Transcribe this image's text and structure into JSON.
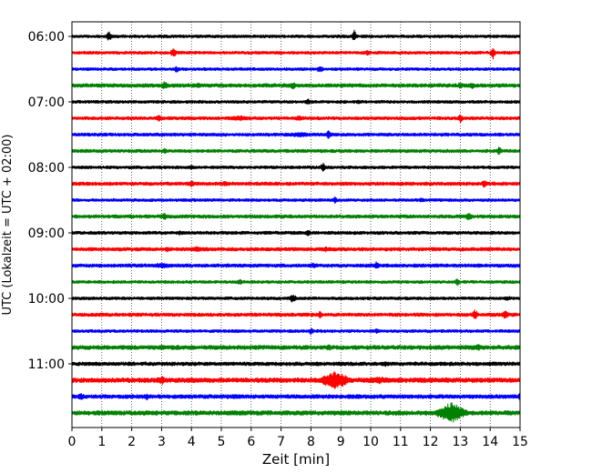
{
  "chart_data": {
    "type": "line",
    "subtype": "helicorder",
    "xlabel": "Zeit  [min]",
    "ylabel": "UTC (Lokalzeit = UTC + 02:00)",
    "xlim": [
      0,
      15
    ],
    "x_ticks": [
      "0",
      "1",
      "2",
      "3",
      "4",
      "5",
      "6",
      "7",
      "8",
      "9",
      "10",
      "11",
      "12",
      "13",
      "14",
      "15"
    ],
    "y_tick_labels": [
      "06:00",
      "07:00",
      "08:00",
      "09:00",
      "10:00",
      "11:00"
    ],
    "trace_minutes_per_line": 15,
    "grid": "vertical-dotted",
    "color_cycle": [
      "#000000",
      "#ff0000",
      "#0000ff",
      "#008000"
    ],
    "traces": [
      {
        "time": "06:00",
        "color": "#000000",
        "base_amp": 1.2,
        "events": [
          {
            "t": 1.25,
            "amp": 6,
            "dur": 0.15
          },
          {
            "t": 9.45,
            "amp": 7,
            "dur": 0.12
          }
        ]
      },
      {
        "time": "06:15",
        "color": "#ff0000",
        "base_amp": 1.2,
        "events": [
          {
            "t": 3.4,
            "amp": 6,
            "dur": 0.15
          },
          {
            "t": 14.1,
            "amp": 7,
            "dur": 0.12
          },
          {
            "t": 9.9,
            "amp": 3,
            "dur": 0.2
          }
        ]
      },
      {
        "time": "06:30",
        "color": "#0000ff",
        "base_amp": 1.2,
        "events": [
          {
            "t": 3.5,
            "amp": 4,
            "dur": 0.15
          },
          {
            "t": 8.3,
            "amp": 5,
            "dur": 0.15
          }
        ]
      },
      {
        "time": "06:45",
        "color": "#008000",
        "base_amp": 1.5,
        "events": [
          {
            "t": 3.1,
            "amp": 5,
            "dur": 0.2
          },
          {
            "t": 4.2,
            "amp": 3,
            "dur": 0.3
          },
          {
            "t": 7.4,
            "amp": 4,
            "dur": 0.2
          },
          {
            "t": 13.0,
            "amp": 4,
            "dur": 0.15
          },
          {
            "t": 13.4,
            "amp": 4,
            "dur": 0.15
          }
        ]
      },
      {
        "time": "07:00",
        "color": "#000000",
        "base_amp": 1.2,
        "events": [
          {
            "t": 7.9,
            "amp": 4,
            "dur": 0.15
          },
          {
            "t": 9.6,
            "amp": 3,
            "dur": 0.15
          }
        ]
      },
      {
        "time": "07:15",
        "color": "#ff0000",
        "base_amp": 1.3,
        "events": [
          {
            "t": 2.9,
            "amp": 4,
            "dur": 0.2
          },
          {
            "t": 5.6,
            "amp": 3,
            "dur": 0.8
          },
          {
            "t": 7.6,
            "amp": 3,
            "dur": 0.3
          },
          {
            "t": 13.0,
            "amp": 5,
            "dur": 0.15
          }
        ]
      },
      {
        "time": "07:30",
        "color": "#0000ff",
        "base_amp": 1.3,
        "events": [
          {
            "t": 7.6,
            "amp": 3,
            "dur": 0.8
          },
          {
            "t": 8.6,
            "amp": 6,
            "dur": 0.15
          }
        ]
      },
      {
        "time": "07:45",
        "color": "#008000",
        "base_amp": 1.3,
        "events": [
          {
            "t": 3.1,
            "amp": 4,
            "dur": 0.15
          },
          {
            "t": 14.3,
            "amp": 5,
            "dur": 0.15
          }
        ]
      },
      {
        "time": "08:00",
        "color": "#000000",
        "base_amp": 1.2,
        "events": [
          {
            "t": 8.4,
            "amp": 6,
            "dur": 0.12
          },
          {
            "t": 4.0,
            "amp": 2.5,
            "dur": 0.3
          }
        ]
      },
      {
        "time": "08:15",
        "color": "#ff0000",
        "base_amp": 1.4,
        "events": [
          {
            "t": 4.0,
            "amp": 4,
            "dur": 0.2
          },
          {
            "t": 5.1,
            "amp": 3,
            "dur": 0.3
          },
          {
            "t": 13.8,
            "amp": 5,
            "dur": 0.15
          }
        ]
      },
      {
        "time": "08:30",
        "color": "#0000ff",
        "base_amp": 1.2,
        "events": [
          {
            "t": 8.8,
            "amp": 4,
            "dur": 0.15
          },
          {
            "t": 11.7,
            "amp": 3,
            "dur": 0.15
          }
        ]
      },
      {
        "time": "08:45",
        "color": "#008000",
        "base_amp": 1.4,
        "events": [
          {
            "t": 3.1,
            "amp": 4,
            "dur": 0.2
          },
          {
            "t": 13.3,
            "amp": 5,
            "dur": 0.2
          }
        ]
      },
      {
        "time": "09:00",
        "color": "#000000",
        "base_amp": 1.3,
        "events": [
          {
            "t": 3.6,
            "amp": 3,
            "dur": 0.15
          },
          {
            "t": 7.9,
            "amp": 4,
            "dur": 0.15
          }
        ]
      },
      {
        "time": "09:15",
        "color": "#ff0000",
        "base_amp": 1.4,
        "events": [
          {
            "t": 3.2,
            "amp": 3,
            "dur": 0.2
          },
          {
            "t": 4.2,
            "amp": 3,
            "dur": 0.6
          },
          {
            "t": 8.5,
            "amp": 3,
            "dur": 0.2
          }
        ]
      },
      {
        "time": "09:30",
        "color": "#0000ff",
        "base_amp": 1.4,
        "events": [
          {
            "t": 3.0,
            "amp": 3,
            "dur": 0.6
          },
          {
            "t": 8.1,
            "amp": 3,
            "dur": 0.4
          },
          {
            "t": 10.2,
            "amp": 5,
            "dur": 0.15
          }
        ]
      },
      {
        "time": "09:45",
        "color": "#008000",
        "base_amp": 1.2,
        "events": [
          {
            "t": 5.6,
            "amp": 3,
            "dur": 0.3
          },
          {
            "t": 12.9,
            "amp": 4,
            "dur": 0.15
          }
        ]
      },
      {
        "time": "10:00",
        "color": "#000000",
        "base_amp": 1.2,
        "events": [
          {
            "t": 7.4,
            "amp": 5,
            "dur": 0.2
          },
          {
            "t": 14.6,
            "amp": 3,
            "dur": 0.2
          }
        ]
      },
      {
        "time": "10:15",
        "color": "#ff0000",
        "base_amp": 1.4,
        "events": [
          {
            "t": 8.3,
            "amp": 4,
            "dur": 0.15
          },
          {
            "t": 13.5,
            "amp": 6,
            "dur": 0.15
          },
          {
            "t": 14.5,
            "amp": 5,
            "dur": 0.2
          }
        ]
      },
      {
        "time": "10:30",
        "color": "#0000ff",
        "base_amp": 1.2,
        "events": [
          {
            "t": 8.0,
            "amp": 4,
            "dur": 0.15
          },
          {
            "t": 10.2,
            "amp": 3,
            "dur": 0.15
          }
        ]
      },
      {
        "time": "10:45",
        "color": "#008000",
        "base_amp": 1.7,
        "events": [
          {
            "t": 3.0,
            "amp": 3,
            "dur": 0.2
          },
          {
            "t": 8.6,
            "amp": 4,
            "dur": 0.2
          },
          {
            "t": 12.3,
            "amp": 3,
            "dur": 0.3
          },
          {
            "t": 13.6,
            "amp": 4,
            "dur": 0.2
          }
        ]
      },
      {
        "time": "11:00",
        "color": "#000000",
        "base_amp": 1.5,
        "events": [
          {
            "t": 10.5,
            "amp": 3,
            "dur": 0.3
          },
          {
            "t": 14.0,
            "amp": 3,
            "dur": 0.3
          }
        ]
      },
      {
        "time": "11:15",
        "color": "#ff0000",
        "base_amp": 1.9,
        "events": [
          {
            "t": 3.0,
            "amp": 5,
            "dur": 0.3
          },
          {
            "t": 8.8,
            "amp": 11,
            "dur": 0.7
          },
          {
            "t": 10.3,
            "amp": 4,
            "dur": 1.0
          },
          {
            "t": 12.0,
            "amp": 3,
            "dur": 0.3
          }
        ]
      },
      {
        "time": "11:30",
        "color": "#0000ff",
        "base_amp": 1.6,
        "events": [
          {
            "t": 0.3,
            "amp": 4,
            "dur": 0.2
          },
          {
            "t": 2.5,
            "amp": 4,
            "dur": 0.15
          },
          {
            "t": 5.5,
            "amp": 3,
            "dur": 0.5
          },
          {
            "t": 9.6,
            "amp": 3,
            "dur": 0.3
          },
          {
            "t": 15.0,
            "amp": 6,
            "dur": 0.1
          }
        ]
      },
      {
        "time": "11:45",
        "color": "#008000",
        "base_amp": 1.8,
        "events": [
          {
            "t": 5.5,
            "amp": 3,
            "dur": 1.0
          },
          {
            "t": 9.0,
            "amp": 3,
            "dur": 0.5
          },
          {
            "t": 12.7,
            "amp": 12,
            "dur": 0.7
          }
        ]
      }
    ]
  }
}
